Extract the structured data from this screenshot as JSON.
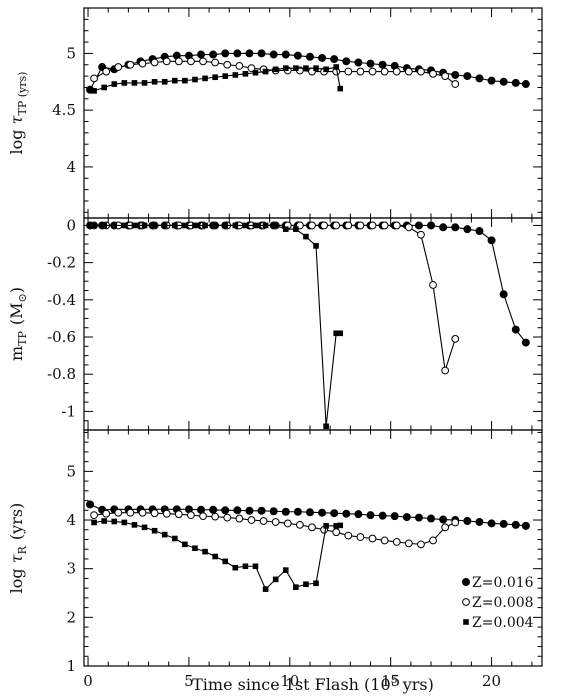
{
  "chart_data": [
    {
      "type": "line",
      "panel": "top",
      "ylabel_text": "log",
      "ylabel_sym": "τ",
      "ylabel_sub": "TP (yrs)",
      "xlim": [
        -0.2,
        22.5
      ],
      "ylim": [
        3.55,
        5.4
      ],
      "yticks": [
        4,
        4.5,
        5
      ],
      "ytick_labels": [
        "4",
        "4.5",
        "5"
      ],
      "series": [
        {
          "marker": "filled-circle",
          "x": [
            0.1,
            0.7,
            1.3,
            2.0,
            2.6,
            3.2,
            3.8,
            4.4,
            5.0,
            5.6,
            6.2,
            6.8,
            7.4,
            8.0,
            8.6,
            9.2,
            9.8,
            10.4,
            11.0,
            11.6,
            12.2,
            12.8,
            13.4,
            14.0,
            14.6,
            15.2,
            15.8,
            16.4,
            17.0,
            17.6,
            18.2,
            18.8,
            19.4,
            20.0,
            20.6,
            21.2,
            21.7
          ],
          "y": [
            4.68,
            4.88,
            4.86,
            4.9,
            4.93,
            4.95,
            4.97,
            4.98,
            4.98,
            4.99,
            4.99,
            5.0,
            5.0,
            5.0,
            5.0,
            4.99,
            4.99,
            4.98,
            4.97,
            4.96,
            4.95,
            4.93,
            4.92,
            4.91,
            4.9,
            4.89,
            4.87,
            4.86,
            4.85,
            4.83,
            4.81,
            4.8,
            4.78,
            4.76,
            4.75,
            4.74,
            4.73
          ]
        },
        {
          "marker": "open-circle",
          "x": [
            0.3,
            0.9,
            1.5,
            2.1,
            2.7,
            3.3,
            3.9,
            4.5,
            5.1,
            5.7,
            6.3,
            6.9,
            7.5,
            8.1,
            8.7,
            9.3,
            9.9,
            10.5,
            11.1,
            11.7,
            12.3,
            12.9,
            13.5,
            14.1,
            14.7,
            15.3,
            15.9,
            16.5,
            17.1,
            17.7,
            18.2
          ],
          "y": [
            4.78,
            4.84,
            4.88,
            4.9,
            4.91,
            4.92,
            4.93,
            4.93,
            4.93,
            4.93,
            4.92,
            4.9,
            4.89,
            4.87,
            4.86,
            4.85,
            4.85,
            4.85,
            4.84,
            4.84,
            4.84,
            4.84,
            4.84,
            4.84,
            4.84,
            4.84,
            4.84,
            4.84,
            4.82,
            4.8,
            4.73
          ]
        },
        {
          "marker": "filled-square",
          "x": [
            0.3,
            0.8,
            1.3,
            1.8,
            2.3,
            2.8,
            3.3,
            3.8,
            4.3,
            4.8,
            5.3,
            5.8,
            6.3,
            6.8,
            7.3,
            7.8,
            8.3,
            8.8,
            9.3,
            9.8,
            10.3,
            10.8,
            11.3,
            11.8,
            12.3,
            12.5
          ],
          "y": [
            4.67,
            4.7,
            4.73,
            4.74,
            4.74,
            4.74,
            4.75,
            4.75,
            4.76,
            4.76,
            4.77,
            4.78,
            4.79,
            4.8,
            4.81,
            4.82,
            4.83,
            4.84,
            4.86,
            4.87,
            4.87,
            4.87,
            4.87,
            4.86,
            4.88,
            4.69
          ]
        }
      ]
    },
    {
      "type": "line",
      "panel": "middle",
      "ylabel_text": "m",
      "ylabel_sub": "TP",
      "ylabel_unit": "(M",
      "ylabel_unit_sub": "⊙",
      "ylabel_unit_end": ")",
      "xlim": [
        -0.2,
        22.5
      ],
      "ylim": [
        -1.1,
        0.04
      ],
      "yticks": [
        0,
        -0.2,
        -0.4,
        -0.6,
        -0.8,
        -1
      ],
      "ytick_labels": [
        "0",
        "-0.2",
        "-0.4",
        "-0.6",
        "-0.8",
        "-1"
      ],
      "series": [
        {
          "marker": "filled-circle",
          "x": [
            0.1,
            0.7,
            1.3,
            2.0,
            2.6,
            3.2,
            3.8,
            4.4,
            5.0,
            5.6,
            6.2,
            6.8,
            7.4,
            8.0,
            8.6,
            9.2,
            9.8,
            10.4,
            11.0,
            11.6,
            12.2,
            12.8,
            13.4,
            14.0,
            14.6,
            15.2,
            15.8,
            16.4,
            17.0,
            17.6,
            18.2,
            18.8,
            19.4,
            20.0,
            20.6,
            21.2,
            21.7
          ],
          "y": [
            0,
            0,
            0,
            0,
            0,
            0,
            0,
            0,
            0,
            0,
            0,
            0,
            0,
            0,
            0,
            0,
            0,
            0,
            0,
            0,
            0,
            0,
            0,
            0,
            0,
            0,
            0,
            0,
            0,
            -0.01,
            -0.01,
            -0.02,
            -0.03,
            -0.08,
            -0.37,
            -0.56,
            -0.63
          ]
        },
        {
          "marker": "open-circle",
          "x": [
            0.3,
            0.9,
            1.5,
            2.1,
            2.7,
            3.3,
            3.9,
            4.5,
            5.1,
            5.7,
            6.3,
            6.9,
            7.5,
            8.1,
            8.7,
            9.3,
            9.9,
            10.5,
            11.1,
            11.7,
            12.3,
            12.9,
            13.5,
            14.1,
            14.7,
            15.3,
            15.9,
            16.5,
            17.1,
            17.7,
            18.2
          ],
          "y": [
            0,
            0,
            0,
            0,
            0,
            0,
            0,
            0,
            0,
            0,
            0,
            0,
            0,
            0,
            0,
            0,
            0,
            0,
            0,
            0,
            0,
            0,
            0,
            0,
            0,
            0,
            -0.01,
            -0.05,
            -0.32,
            -0.78,
            -0.61
          ]
        },
        {
          "marker": "filled-square",
          "x": [
            0.3,
            0.8,
            1.3,
            1.8,
            2.3,
            2.8,
            3.3,
            3.8,
            4.3,
            4.8,
            5.3,
            5.8,
            6.3,
            6.8,
            7.3,
            7.8,
            8.3,
            8.8,
            9.3,
            9.8,
            10.3,
            10.8,
            11.3,
            11.8,
            12.3,
            12.5
          ],
          "y": [
            0,
            0,
            0,
            0,
            0,
            0,
            0,
            0,
            0,
            0,
            0,
            0,
            0,
            0,
            0,
            0,
            0,
            0,
            0,
            -0.02,
            -0.02,
            -0.06,
            -0.11,
            -1.08,
            -0.58,
            -0.58
          ]
        }
      ]
    },
    {
      "type": "line",
      "panel": "bottom",
      "xlabel_text": "Time since 1st Flash (10",
      "xlabel_exp": "5",
      "xlabel_end": " yrs)",
      "ylabel_text": "log",
      "ylabel_sym": "τ",
      "ylabel_sub": "R",
      "ylabel_unit": "(yrs)",
      "xlim": [
        -0.2,
        22.5
      ],
      "ylim": [
        1,
        5.85
      ],
      "xticks": [
        0,
        5,
        10,
        15,
        20
      ],
      "xtick_labels": [
        "0",
        "5",
        "10",
        "15",
        "20"
      ],
      "yticks": [
        1,
        2,
        3,
        4,
        5
      ],
      "ytick_labels": [
        "1",
        "2",
        "3",
        "4",
        "5"
      ],
      "legend": [
        "Z=0.016",
        "Z=0.008",
        "Z=0.004"
      ],
      "legend_position": "bottom-right",
      "series": [
        {
          "name": "Z=0.016",
          "marker": "filled-circle",
          "x": [
            0.1,
            0.7,
            1.3,
            2.0,
            2.6,
            3.2,
            3.8,
            4.4,
            5.0,
            5.6,
            6.2,
            6.8,
            7.4,
            8.0,
            8.6,
            9.2,
            9.8,
            10.4,
            11.0,
            11.6,
            12.2,
            12.8,
            13.4,
            14.0,
            14.6,
            15.2,
            15.8,
            16.4,
            17.0,
            17.6,
            18.2,
            18.8,
            19.4,
            20.0,
            20.6,
            21.2,
            21.7
          ],
          "y": [
            4.32,
            4.21,
            4.22,
            4.22,
            4.22,
            4.22,
            4.22,
            4.22,
            4.22,
            4.21,
            4.21,
            4.2,
            4.2,
            4.19,
            4.19,
            4.18,
            4.17,
            4.17,
            4.16,
            4.15,
            4.14,
            4.13,
            4.12,
            4.1,
            4.09,
            4.08,
            4.06,
            4.05,
            4.03,
            4.01,
            4.0,
            3.98,
            3.96,
            3.93,
            3.92,
            3.9,
            3.88
          ]
        },
        {
          "name": "Z=0.008",
          "marker": "open-circle",
          "x": [
            0.3,
            0.9,
            1.5,
            2.1,
            2.7,
            3.3,
            3.9,
            4.5,
            5.1,
            5.7,
            6.3,
            6.9,
            7.5,
            8.1,
            8.7,
            9.3,
            9.9,
            10.5,
            11.1,
            11.7,
            12.3,
            12.9,
            13.5,
            14.1,
            14.7,
            15.3,
            15.9,
            16.5,
            17.1,
            17.7,
            18.2
          ],
          "y": [
            4.1,
            4.13,
            4.15,
            4.15,
            4.15,
            4.14,
            4.13,
            4.12,
            4.1,
            4.08,
            4.07,
            4.05,
            4.03,
            4.0,
            3.98,
            3.96,
            3.93,
            3.9,
            3.85,
            3.8,
            3.75,
            3.68,
            3.65,
            3.62,
            3.58,
            3.55,
            3.52,
            3.5,
            3.58,
            3.85,
            3.95
          ]
        },
        {
          "name": "Z=0.004",
          "marker": "filled-square",
          "x": [
            0.3,
            0.8,
            1.3,
            1.8,
            2.3,
            2.8,
            3.3,
            3.8,
            4.3,
            4.8,
            5.3,
            5.8,
            6.3,
            6.8,
            7.3,
            7.8,
            8.3,
            8.8,
            9.3,
            9.8,
            10.3,
            10.8,
            11.3,
            11.8,
            12.3,
            12.5
          ],
          "y": [
            3.95,
            3.98,
            3.97,
            3.95,
            3.9,
            3.85,
            3.78,
            3.7,
            3.62,
            3.5,
            3.42,
            3.35,
            3.25,
            3.15,
            3.02,
            3.05,
            3.05,
            2.58,
            2.78,
            2.97,
            2.62,
            2.68,
            2.7,
            3.88,
            3.88,
            3.89
          ]
        }
      ]
    }
  ]
}
